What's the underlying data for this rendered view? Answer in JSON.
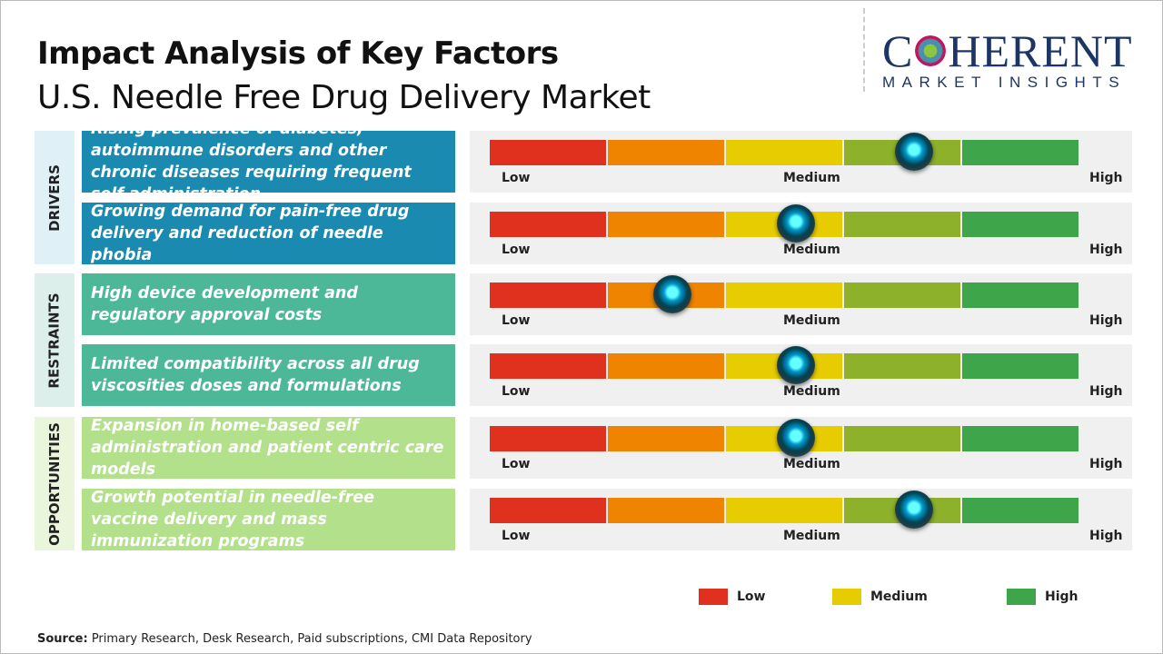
{
  "title": "Impact Analysis of Key Factors",
  "subtitle": "U.S. Needle Free Drug Delivery Market",
  "logo": {
    "main": "COHERENT",
    "sub": "MARKET INSIGHTS"
  },
  "scale_labels": {
    "low": "Low",
    "medium": "Medium",
    "high": "High"
  },
  "colors": {
    "segments": [
      "#e0301e",
      "#ee8400",
      "#e6cc00",
      "#8db12a",
      "#3fa54a"
    ]
  },
  "chart_data": {
    "type": "gauge-table",
    "scale": "Low to High (0-1)",
    "categories": [
      {
        "name": "DRIVERS",
        "color": "#1a8ab0",
        "bg": "#dff0f7",
        "factors": [
          {
            "text": "Rising prevalence of diabetes, autoimmune disorders and other chronic diseases requiring frequent self administration",
            "level": 0.72
          },
          {
            "text": "Growing demand for pain-free drug delivery and reduction of needle phobia",
            "level": 0.52
          }
        ]
      },
      {
        "name": "RESTRAINTS",
        "color": "#4db898",
        "bg": "#dcefea",
        "factors": [
          {
            "text": "High device development and regulatory approval costs",
            "level": 0.31
          },
          {
            "text": "Limited compatibility across all drug viscosities doses and formulations",
            "level": 0.52
          }
        ]
      },
      {
        "name": "OPPORTUNITIES",
        "color": "#b3e08a",
        "bg": "#eaf6dc",
        "factors": [
          {
            "text": "Expansion in home-based self administration and patient centric care models",
            "level": 0.52
          },
          {
            "text": "Growth potential in needle-free vaccine delivery and mass immunization programs",
            "level": 0.72
          }
        ]
      }
    ],
    "legend": [
      {
        "label": "Low",
        "color": "#e0301e"
      },
      {
        "label": "Medium",
        "color": "#e6cc00"
      },
      {
        "label": "High",
        "color": "#3fa54a"
      }
    ]
  },
  "source": {
    "label": "Source:",
    "text": " Primary Research, Desk Research, Paid subscriptions, CMI Data Repository"
  }
}
